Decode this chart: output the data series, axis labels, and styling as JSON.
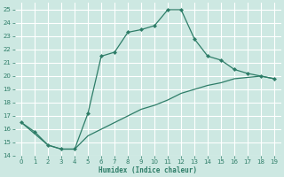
{
  "xlabel": "Humidex (Indice chaleur)",
  "xlim": [
    -0.5,
    19.5
  ],
  "ylim": [
    14,
    25.5
  ],
  "yticks": [
    14,
    15,
    16,
    17,
    18,
    19,
    20,
    21,
    22,
    23,
    24,
    25
  ],
  "xticks": [
    0,
    1,
    2,
    3,
    4,
    5,
    6,
    7,
    8,
    9,
    10,
    11,
    12,
    13,
    14,
    15,
    16,
    17,
    18,
    19
  ],
  "bg_color": "#cde8e2",
  "line_color": "#2e7d68",
  "grid_color": "#b8d8d2",
  "curve1_x": [
    0,
    1,
    2,
    3,
    4,
    5,
    6,
    7,
    8,
    9,
    10,
    11,
    12,
    13,
    14,
    15,
    16,
    17,
    18,
    19
  ],
  "curve1_y": [
    16.5,
    15.8,
    14.8,
    14.5,
    14.5,
    17.2,
    21.5,
    21.8,
    23.3,
    23.5,
    23.8,
    25.0,
    25.0,
    22.8,
    21.5,
    21.2,
    20.5,
    20.2,
    20.0,
    19.8
  ],
  "curve2_x": [
    0,
    2,
    3,
    4,
    5,
    6,
    7,
    8,
    9,
    10,
    11,
    12,
    13,
    14,
    15,
    16,
    17,
    18,
    19
  ],
  "curve2_y": [
    16.5,
    14.8,
    14.5,
    14.5,
    15.5,
    16.0,
    16.5,
    17.0,
    17.5,
    17.8,
    18.2,
    18.7,
    19.0,
    19.3,
    19.5,
    19.8,
    19.9,
    20.0,
    19.8
  ]
}
